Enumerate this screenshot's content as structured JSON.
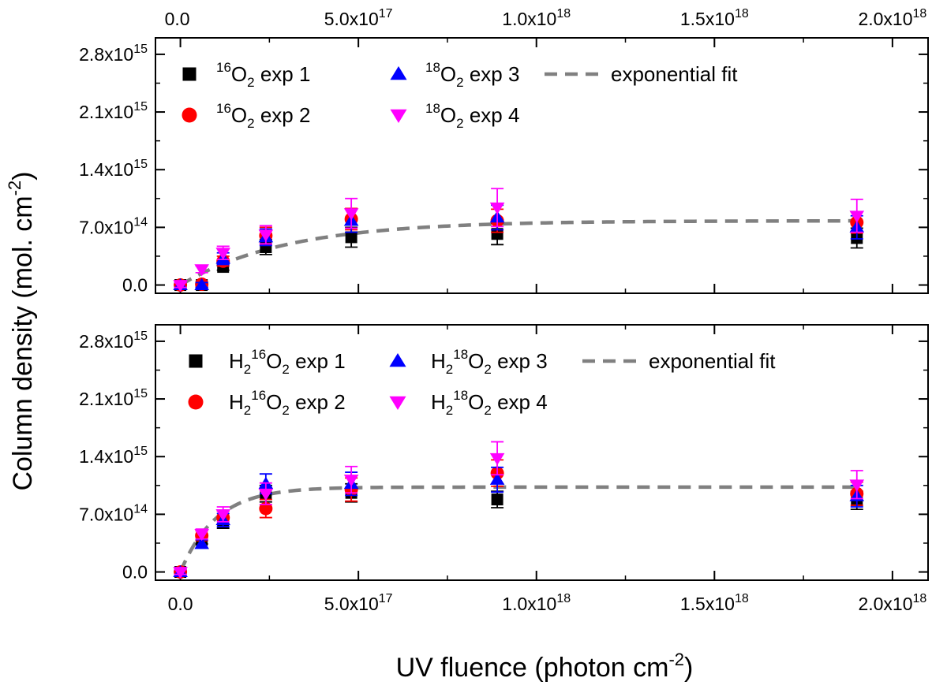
{
  "colors": {
    "exp1": "#000000",
    "exp2": "#ff0000",
    "exp3": "#0000ff",
    "exp4": "#ff00ff",
    "fit": "#808080"
  },
  "chart_data": {
    "type": "scatter",
    "ylabel": "Column density (mol. cm",
    "ylabel_sup": "-2",
    "ylabel_close": ")",
    "xlabel": "UV fluence (photon cm",
    "xlabel_sup": "-2",
    "xlabel_close": ")",
    "xlim": [
      -7e+16,
      2.1e+18
    ],
    "ylim": [
      -100000000000000.0,
      3000000000000000.0
    ],
    "x_ticks": [
      {
        "value": 0,
        "mant": "0.0",
        "exp": ""
      },
      {
        "value": 5e+17,
        "mant": "5.0x10",
        "exp": "17"
      },
      {
        "value": 1e+18,
        "mant": "1.0x10",
        "exp": "18"
      },
      {
        "value": 1.5e+18,
        "mant": "1.5x10",
        "exp": "18"
      },
      {
        "value": 2e+18,
        "mant": "2.0x10",
        "exp": "18"
      }
    ],
    "y_ticks": [
      {
        "value": 0,
        "mant": "0.0",
        "exp": ""
      },
      {
        "value": 700000000000000.0,
        "mant": "7.0x10",
        "exp": "14"
      },
      {
        "value": 1400000000000000.0,
        "mant": "1.4x10",
        "exp": "15"
      },
      {
        "value": 2100000000000000.0,
        "mant": "2.1x10",
        "exp": "15"
      },
      {
        "value": 2800000000000000.0,
        "mant": "2.8x10",
        "exp": "15"
      }
    ],
    "panels": [
      {
        "id": "top",
        "legend": [
          {
            "marker": "square",
            "color_key": "exp1",
            "pre": "",
            "sup": "16",
            "base": "O",
            "sub": "2",
            "post": " exp 1"
          },
          {
            "marker": "circle",
            "color_key": "exp2",
            "pre": "",
            "sup": "16",
            "base": "O",
            "sub": "2",
            "post": " exp 2"
          },
          {
            "marker": "triangle-up",
            "color_key": "exp3",
            "pre": "",
            "sup": "18",
            "base": "O",
            "sub": "2",
            "post": " exp 3"
          },
          {
            "marker": "triangle-down",
            "color_key": "exp4",
            "pre": "",
            "sup": "18",
            "base": "O",
            "sub": "2",
            "post": " exp 4"
          },
          {
            "marker": "dash",
            "color_key": "fit",
            "label": "exponential fit"
          }
        ],
        "fit": {
          "amplitude": 780000000000000.0,
          "scale": 3e+17
        },
        "series": [
          {
            "color_key": "exp1",
            "marker": "square",
            "x": [
              0,
              6e+16,
              1.2e+17,
              2.4e+17,
              4.8e+17,
              8.9e+17,
              1.9e+18
            ],
            "y": [
              0,
              0,
              220000000000000.0,
              460000000000000.0,
              580000000000000.0,
              620000000000000.0,
              570000000000000.0
            ],
            "err": [
              30000000000000.0,
              30000000000000.0,
              40000000000000.0,
              90000000000000.0,
              120000000000000.0,
              130000000000000.0,
              120000000000000.0
            ]
          },
          {
            "color_key": "exp2",
            "marker": "circle",
            "x": [
              0,
              6e+16,
              1.2e+17,
              2.4e+17,
              4.8e+17,
              8.9e+17,
              1.9e+18
            ],
            "y": [
              0,
              10000000000000.0,
              290000000000000.0,
              600000000000000.0,
              800000000000000.0,
              780000000000000.0,
              760000000000000.0
            ],
            "err": [
              30000000000000.0,
              30000000000000.0,
              60000000000000.0,
              100000000000000.0,
              130000000000000.0,
              140000000000000.0,
              130000000000000.0
            ]
          },
          {
            "color_key": "exp3",
            "marker": "triangle-up",
            "x": [
              0,
              6e+16,
              1.2e+17,
              2.4e+17,
              4.8e+17,
              8.9e+17,
              1.9e+18
            ],
            "y": [
              0,
              0,
              320000000000000.0,
              580000000000000.0,
              780000000000000.0,
              820000000000000.0,
              700000000000000.0
            ],
            "err": [
              30000000000000.0,
              30000000000000.0,
              70000000000000.0,
              100000000000000.0,
              140000000000000.0,
              150000000000000.0,
              140000000000000.0
            ]
          },
          {
            "color_key": "exp4",
            "marker": "triangle-down",
            "x": [
              0,
              6e+16,
              1.2e+17,
              2.4e+17,
              4.8e+17,
              8.9e+17,
              1.9e+18
            ],
            "y": [
              0,
              190000000000000.0,
              390000000000000.0,
              610000000000000.0,
              870000000000000.0,
              940000000000000.0,
              840000000000000.0
            ],
            "err": [
              30000000000000.0,
              40000000000000.0,
              80000000000000.0,
              110000000000000.0,
              180000000000000.0,
              230000000000000.0,
              200000000000000.0
            ]
          }
        ]
      },
      {
        "id": "bottom",
        "legend": [
          {
            "marker": "square",
            "color_key": "exp1",
            "pre": "H",
            "pre_sub": "2",
            "sup": "16",
            "base": "O",
            "sub": "2",
            "post": " exp 1"
          },
          {
            "marker": "circle",
            "color_key": "exp2",
            "pre": "H",
            "pre_sub": "2",
            "sup": "16",
            "base": "O",
            "sub": "2",
            "post": " exp 2"
          },
          {
            "marker": "triangle-up",
            "color_key": "exp3",
            "pre": "H",
            "pre_sub": "2",
            "sup": "18",
            "base": "O",
            "sub": "2",
            "post": " exp 3"
          },
          {
            "marker": "triangle-down",
            "color_key": "exp4",
            "pre": "H",
            "pre_sub": "2",
            "sup": "18",
            "base": "O",
            "sub": "2",
            "post": " exp 4"
          },
          {
            "marker": "dash",
            "color_key": "fit",
            "label": "exponential fit"
          }
        ],
        "fit": {
          "amplitude": 1030000000000000.0,
          "scale": 1e+17
        },
        "series": [
          {
            "color_key": "exp1",
            "marker": "square",
            "x": [
              0,
              6e+16,
              1.2e+17,
              2.4e+17,
              4.8e+17,
              8.9e+17,
              1.9e+18
            ],
            "y": [
              0,
              390000000000000.0,
              600000000000000.0,
              950000000000000.0,
              960000000000000.0,
              880000000000000.0,
              870000000000000.0
            ],
            "err": [
              30000000000000.0,
              50000000000000.0,
              70000000000000.0,
              100000000000000.0,
              110000000000000.0,
              100000000000000.0,
              110000000000000.0
            ]
          },
          {
            "color_key": "exp2",
            "marker": "circle",
            "x": [
              0,
              6e+16,
              1.2e+17,
              2.4e+17,
              4.8e+17,
              8.9e+17,
              1.9e+18
            ],
            "y": [
              0,
              440000000000000.0,
              660000000000000.0,
              770000000000000.0,
              1000000000000000.0,
              1200000000000000.0,
              950000000000000.0
            ],
            "err": [
              30000000000000.0,
              60000000000000.0,
              80000000000000.0,
              110000000000000.0,
              140000000000000.0,
              160000000000000.0,
              140000000000000.0
            ]
          },
          {
            "color_key": "exp3",
            "marker": "triangle-up",
            "x": [
              0,
              6e+16,
              1.2e+17,
              2.4e+17,
              4.8e+17,
              8.9e+17,
              1.9e+18
            ],
            "y": [
              0,
              340000000000000.0,
              630000000000000.0,
              1070000000000000.0,
              1070000000000000.0,
              1120000000000000.0,
              920000000000000.0
            ],
            "err": [
              30000000000000.0,
              50000000000000.0,
              80000000000000.0,
              120000000000000.0,
              140000000000000.0,
              150000000000000.0,
              130000000000000.0
            ]
          },
          {
            "color_key": "exp4",
            "marker": "triangle-down",
            "x": [
              0,
              6e+16,
              1.2e+17,
              2.4e+17,
              4.8e+17,
              8.9e+17,
              1.9e+18
            ],
            "y": [
              0,
              460000000000000.0,
              700000000000000.0,
              950000000000000.0,
              1120000000000000.0,
              1380000000000000.0,
              1060000000000000.0
            ],
            "err": [
              30000000000000.0,
              60000000000000.0,
              90000000000000.0,
              130000000000000.0,
              160000000000000.0,
              200000000000000.0,
              170000000000000.0
            ]
          }
        ]
      }
    ]
  }
}
